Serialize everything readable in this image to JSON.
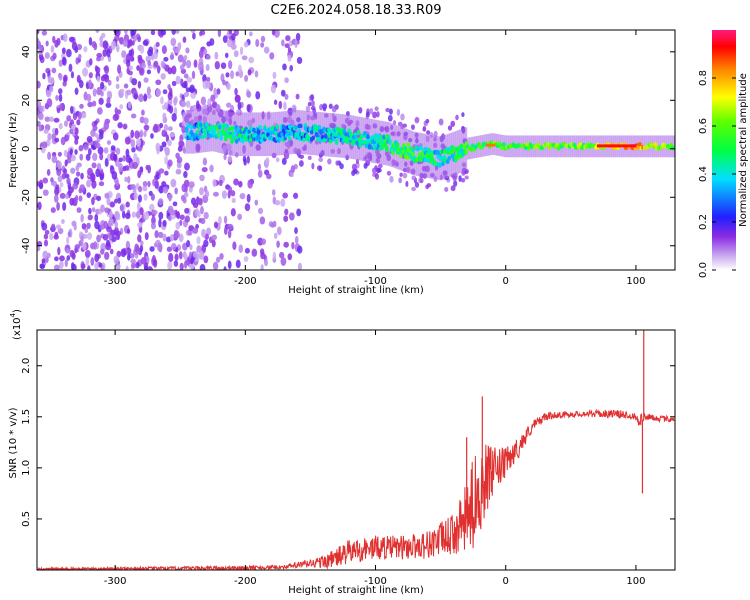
{
  "title": "C2E6.2024.058.18.33.R09",
  "chart_data": [
    {
      "type": "heatmap",
      "name": "spectrogram",
      "xlabel": "Height of straight line (km)",
      "ylabel": "Frequency (Hz)",
      "xlim": [
        -360,
        130
      ],
      "ylim": [
        -50,
        49
      ],
      "xticks": [
        -300,
        -200,
        -100,
        0,
        100
      ],
      "xtick_labels": [
        "-300",
        "-200",
        "-100",
        "0",
        "100"
      ],
      "yticks": [
        -40,
        -20,
        0,
        20,
        40
      ],
      "ytick_labels": [
        "-40",
        "-20",
        "0",
        "20",
        "40"
      ],
      "colorbar": {
        "label": "Normalized spectral amplitude",
        "range": [
          0,
          1
        ],
        "ticks": [
          0.0,
          0.2,
          0.4,
          0.6,
          0.8
        ],
        "tick_labels": [
          "0.0",
          "0.2",
          "0.4",
          "0.6",
          "0.8"
        ],
        "colormap": "rainbow"
      },
      "noise_region": {
        "x_start": -360,
        "x_end": -168,
        "description_amplitude": 0.15
      },
      "signal_ridge": {
        "x": [
          -240,
          -225,
          -210,
          -195,
          -180,
          -160,
          -140,
          -120,
          -100,
          -90,
          -80,
          -70,
          -60,
          -50,
          -40,
          -30,
          -20,
          -10,
          0,
          20,
          40,
          60,
          80,
          100,
          120,
          130
        ],
        "frequency": [
          7,
          8,
          6,
          6,
          6,
          7,
          6,
          5,
          3,
          2,
          0,
          -2,
          -3,
          -4,
          -2,
          0,
          1,
          2,
          1,
          1,
          1,
          1,
          1,
          1,
          1,
          1
        ],
        "amplitude": [
          0.3,
          0.45,
          0.45,
          0.4,
          0.35,
          0.35,
          0.35,
          0.4,
          0.4,
          0.45,
          0.5,
          0.5,
          0.45,
          0.4,
          0.45,
          0.5,
          0.5,
          0.55,
          0.55,
          0.55,
          0.55,
          0.6,
          0.75,
          0.8,
          0.6,
          0.55
        ]
      }
    },
    {
      "type": "line",
      "name": "snr",
      "xlabel": "Height of straight line (km)",
      "ylabel": "SNR (10 * v/v)",
      "y_multiplier": "(x10",
      "y_multiplier_exp": "4",
      "y_multiplier_close": ")",
      "xlim": [
        -360,
        130
      ],
      "ylim": [
        0,
        2.35
      ],
      "xticks": [
        -300,
        -200,
        -100,
        0,
        100
      ],
      "xtick_labels": [
        "-300",
        "-200",
        "-100",
        "0",
        "100"
      ],
      "yticks": [
        0.5,
        1.0,
        1.5,
        2.0
      ],
      "ytick_labels": [
        "0.5",
        "1.0",
        "1.5",
        "2.0"
      ],
      "color": "#e03030",
      "envelope": {
        "x": [
          -360,
          -200,
          -170,
          -140,
          -130,
          -120,
          -100,
          -80,
          -60,
          -40,
          -30,
          -25,
          -20,
          -15,
          -10,
          0,
          10,
          20,
          30,
          40,
          60,
          80,
          95,
          100,
          105,
          106,
          108,
          110,
          120,
          130
        ],
        "mean": [
          0.01,
          0.02,
          0.03,
          0.08,
          0.12,
          0.18,
          0.22,
          0.22,
          0.25,
          0.35,
          0.5,
          0.65,
          0.8,
          0.9,
          0.95,
          1.05,
          1.2,
          1.4,
          1.5,
          1.52,
          1.53,
          1.53,
          1.52,
          1.5,
          1.45,
          1.5,
          1.5,
          1.5,
          1.48,
          1.48
        ],
        "spread": [
          0.01,
          0.02,
          0.02,
          0.06,
          0.1,
          0.12,
          0.12,
          0.12,
          0.14,
          0.2,
          0.35,
          0.45,
          0.45,
          0.35,
          0.25,
          0.15,
          0.1,
          0.06,
          0.04,
          0.03,
          0.03,
          0.04,
          0.04,
          0.05,
          0.1,
          0.05,
          0.03,
          0.03,
          0.03,
          0.03
        ]
      },
      "spikes": [
        {
          "x": -18,
          "y": 1.7
        },
        {
          "x": -30,
          "y": 1.3
        },
        {
          "x": 105,
          "y": 0.75
        },
        {
          "x": 106,
          "y": 2.35
        }
      ]
    }
  ]
}
